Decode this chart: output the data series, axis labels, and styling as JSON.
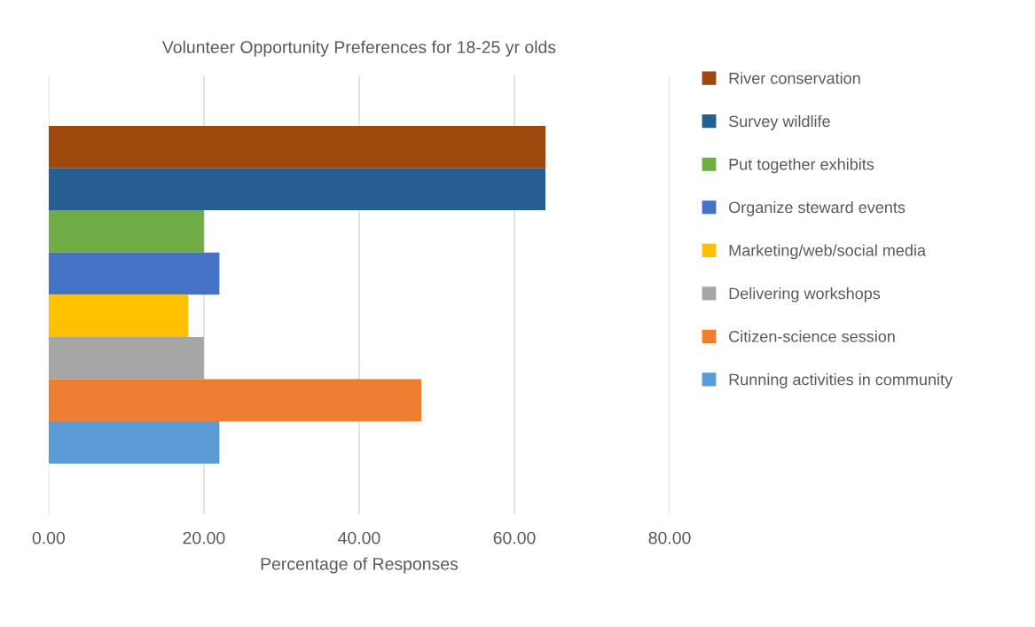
{
  "chart_data": {
    "type": "bar",
    "orientation": "horizontal",
    "title": "Volunteer Opportunity Preferences for 18-25 yr olds",
    "xlabel": "Percentage of Responses",
    "categories": [
      null
    ],
    "series": [
      {
        "name": "River conservation",
        "color": "#9e480e",
        "values": [
          64
        ]
      },
      {
        "name": "Survey wildlife",
        "color": "#255e91",
        "values": [
          64
        ]
      },
      {
        "name": "Put together exhibits",
        "color": "#70ad47",
        "values": [
          20
        ]
      },
      {
        "name": "Organize steward events",
        "color": "#4472c4",
        "values": [
          22
        ]
      },
      {
        "name": "Marketing/web/social media",
        "color": "#ffc000",
        "values": [
          18
        ]
      },
      {
        "name": "Delivering workshops",
        "color": "#a5a5a5",
        "values": [
          20
        ]
      },
      {
        "name": "Citizen-science session",
        "color": "#ed7d31",
        "values": [
          48
        ]
      },
      {
        "name": "Running activities in community",
        "color": "#5b9bd5",
        "values": [
          22
        ]
      }
    ],
    "xlim": [
      0,
      80
    ],
    "xticks": [
      {
        "value": 0,
        "label": "0.00"
      },
      {
        "value": 20,
        "label": "20.00"
      },
      {
        "value": 40,
        "label": "40.00"
      },
      {
        "value": 60,
        "label": "60.00"
      },
      {
        "value": 80,
        "label": "80.00"
      }
    ],
    "grid": "x",
    "legend": "right",
    "tick_labels": "x"
  }
}
